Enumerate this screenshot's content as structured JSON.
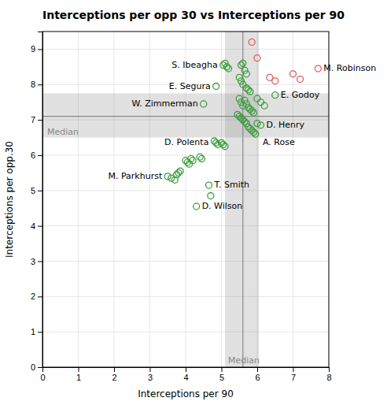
{
  "chart_data": {
    "type": "scatter",
    "title": "Interceptions per opp 30 vs Interceptions per 90",
    "x_label": "Interceptions per 90",
    "y_label": "Interceptions per opp.30",
    "xlim": [
      0,
      8
    ],
    "ylim": [
      0,
      9.5
    ],
    "xticks": [
      0,
      1,
      2,
      3,
      4,
      5,
      6,
      7,
      8
    ],
    "yticks": [
      0,
      1,
      2,
      3,
      4,
      5,
      6,
      7,
      8,
      9
    ],
    "grid": true,
    "series": [
      {
        "color": "#3a9e3a",
        "marker": "circle",
        "x": [
          5.05,
          5.1,
          5.15,
          5.2,
          5.55,
          5.6,
          5.65,
          5.7,
          4.85,
          5.5,
          5.55,
          5.6,
          5.7,
          5.75,
          5.8,
          4.5,
          5.5,
          5.55,
          5.6,
          5.65,
          5.7,
          5.75,
          5.8,
          5.85,
          5.9,
          6.0,
          6.1,
          6.2,
          6.5,
          5.45,
          5.5,
          5.55,
          5.6,
          5.65,
          5.7,
          5.75,
          5.8,
          5.85,
          5.9,
          5.95,
          6.0,
          6.1,
          5.0,
          5.05,
          5.1,
          4.8,
          4.85,
          4.9,
          3.5,
          3.6,
          3.7,
          3.75,
          3.8,
          3.85,
          4.0,
          4.05,
          4.1,
          4.15,
          4.2,
          4.4,
          4.45,
          4.65,
          4.7,
          4.3
        ],
        "values": [
          8.55,
          8.6,
          8.5,
          8.45,
          8.55,
          8.6,
          8.4,
          8.3,
          7.95,
          8.2,
          8.1,
          8.0,
          7.9,
          7.85,
          7.8,
          7.45,
          7.6,
          7.5,
          7.4,
          7.55,
          7.45,
          7.35,
          7.3,
          7.25,
          7.2,
          7.6,
          7.5,
          7.4,
          7.7,
          7.15,
          7.1,
          7.05,
          7.0,
          6.95,
          6.9,
          6.8,
          6.75,
          6.7,
          6.65,
          6.6,
          6.9,
          6.85,
          6.35,
          6.3,
          6.25,
          6.4,
          6.35,
          6.3,
          5.4,
          5.35,
          5.3,
          5.45,
          5.5,
          5.55,
          5.85,
          5.8,
          5.75,
          5.9,
          5.85,
          5.95,
          5.9,
          5.15,
          4.85,
          4.55
        ]
      },
      {
        "color": "#e05a5a",
        "marker": "circle",
        "x": [
          5.85,
          6.0,
          6.35,
          6.5,
          7.0,
          7.2,
          7.7
        ],
        "values": [
          9.2,
          8.75,
          8.2,
          8.1,
          8.3,
          8.15,
          8.45
        ]
      }
    ],
    "medians": {
      "label": "Median",
      "x": 5.6,
      "y": 7.1,
      "band_x": [
        5.1,
        6.05
      ],
      "band_y": [
        6.5,
        7.75
      ],
      "color": "#888888"
    },
    "annotations": [
      {
        "text": "S. Ibeagha",
        "x": 5.05,
        "y": 8.55,
        "side": "left"
      },
      {
        "text": "E. Segura",
        "x": 4.85,
        "y": 7.95,
        "side": "left"
      },
      {
        "text": "W. Zimmerman",
        "x": 4.5,
        "y": 7.45,
        "side": "left"
      },
      {
        "text": "D. Polenta",
        "x": 4.8,
        "y": 6.35,
        "side": "left"
      },
      {
        "text": "M. Parkhurst",
        "x": 3.5,
        "y": 5.4,
        "side": "left"
      },
      {
        "text": "T. Smith",
        "x": 4.65,
        "y": 5.15,
        "side": "right"
      },
      {
        "text": "D. Wilson",
        "x": 4.3,
        "y": 4.55,
        "side": "right"
      },
      {
        "text": "E. Godoy",
        "x": 6.5,
        "y": 7.7,
        "side": "right"
      },
      {
        "text": "D. Henry",
        "x": 6.1,
        "y": 6.85,
        "side": "right"
      },
      {
        "text": "A. Rose",
        "x": 6.0,
        "y": 6.35,
        "side": "right"
      },
      {
        "text": "M. Robinson",
        "x": 7.7,
        "y": 8.45,
        "side": "right"
      }
    ]
  }
}
